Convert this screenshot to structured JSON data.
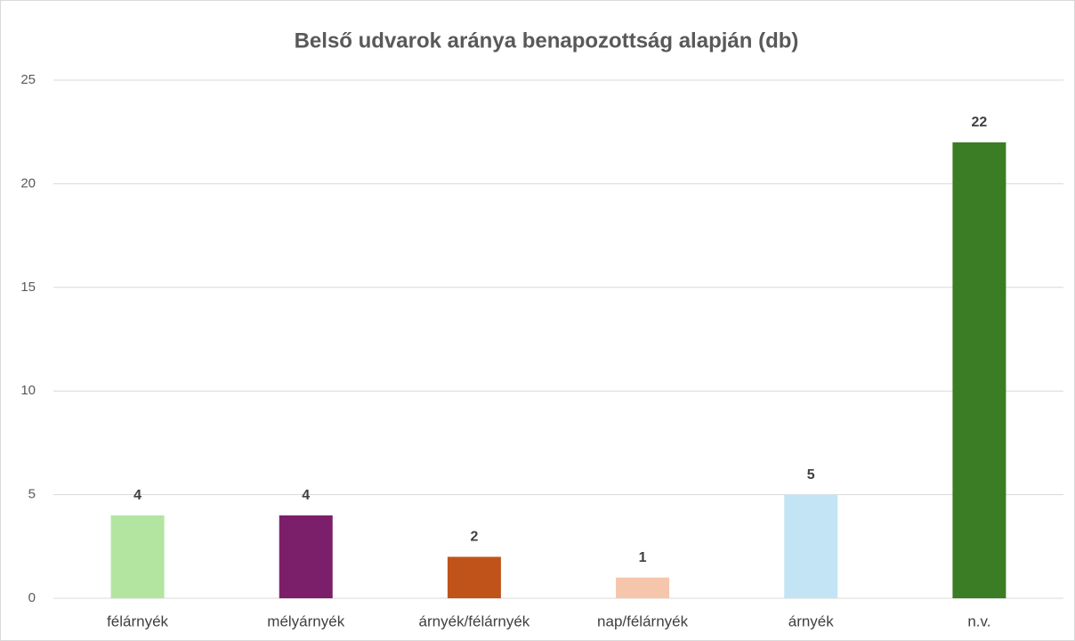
{
  "chart_data": {
    "type": "bar",
    "title": "Belső udvarok aránya benapozottság alapján (db)",
    "categories": [
      "félárnyék",
      "mélyárnyék",
      "árnyék/félárnyék",
      "nap/félárnyék",
      "árnyék",
      "n.v."
    ],
    "values": [
      4,
      4,
      2,
      1,
      5,
      22
    ],
    "colors": [
      "#b3e5a1",
      "#7b1f6a",
      "#c0531a",
      "#f5c6ac",
      "#c2e4f4",
      "#3a7d24"
    ],
    "ylim": [
      0,
      25
    ],
    "yticks": [
      0,
      5,
      10,
      15,
      20,
      25
    ],
    "grid": true
  }
}
